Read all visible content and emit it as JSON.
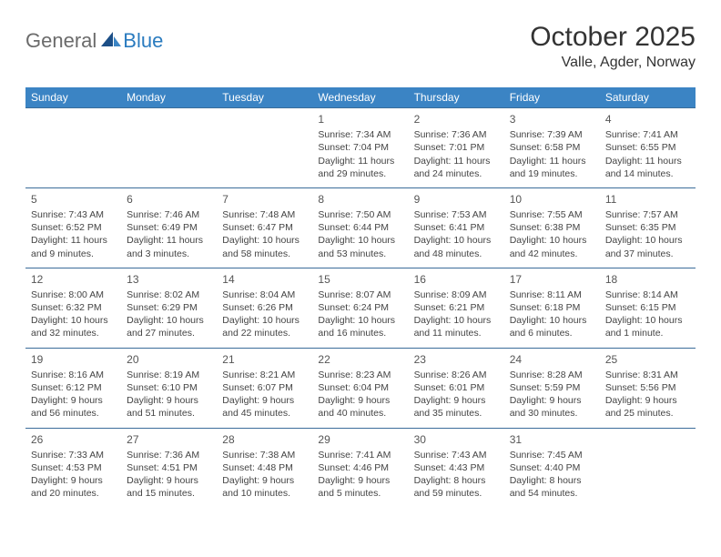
{
  "logo": {
    "part1": "General",
    "part2": "Blue"
  },
  "title": "October 2025",
  "location": "Valle, Agder, Norway",
  "columns": [
    "Sunday",
    "Monday",
    "Tuesday",
    "Wednesday",
    "Thursday",
    "Friday",
    "Saturday"
  ],
  "colors": {
    "header_bg": "#3b84c4",
    "header_text": "#ffffff",
    "border": "#3b6d9a",
    "logo_gray": "#6b6b6b",
    "logo_blue": "#2a7bbf",
    "text": "#444444"
  },
  "weeks": [
    [
      null,
      null,
      null,
      {
        "n": "1",
        "sr": "7:34 AM",
        "ss": "7:04 PM",
        "dl": "11 hours and 29 minutes."
      },
      {
        "n": "2",
        "sr": "7:36 AM",
        "ss": "7:01 PM",
        "dl": "11 hours and 24 minutes."
      },
      {
        "n": "3",
        "sr": "7:39 AM",
        "ss": "6:58 PM",
        "dl": "11 hours and 19 minutes."
      },
      {
        "n": "4",
        "sr": "7:41 AM",
        "ss": "6:55 PM",
        "dl": "11 hours and 14 minutes."
      }
    ],
    [
      {
        "n": "5",
        "sr": "7:43 AM",
        "ss": "6:52 PM",
        "dl": "11 hours and 9 minutes."
      },
      {
        "n": "6",
        "sr": "7:46 AM",
        "ss": "6:49 PM",
        "dl": "11 hours and 3 minutes."
      },
      {
        "n": "7",
        "sr": "7:48 AM",
        "ss": "6:47 PM",
        "dl": "10 hours and 58 minutes."
      },
      {
        "n": "8",
        "sr": "7:50 AM",
        "ss": "6:44 PM",
        "dl": "10 hours and 53 minutes."
      },
      {
        "n": "9",
        "sr": "7:53 AM",
        "ss": "6:41 PM",
        "dl": "10 hours and 48 minutes."
      },
      {
        "n": "10",
        "sr": "7:55 AM",
        "ss": "6:38 PM",
        "dl": "10 hours and 42 minutes."
      },
      {
        "n": "11",
        "sr": "7:57 AM",
        "ss": "6:35 PM",
        "dl": "10 hours and 37 minutes."
      }
    ],
    [
      {
        "n": "12",
        "sr": "8:00 AM",
        "ss": "6:32 PM",
        "dl": "10 hours and 32 minutes."
      },
      {
        "n": "13",
        "sr": "8:02 AM",
        "ss": "6:29 PM",
        "dl": "10 hours and 27 minutes."
      },
      {
        "n": "14",
        "sr": "8:04 AM",
        "ss": "6:26 PM",
        "dl": "10 hours and 22 minutes."
      },
      {
        "n": "15",
        "sr": "8:07 AM",
        "ss": "6:24 PM",
        "dl": "10 hours and 16 minutes."
      },
      {
        "n": "16",
        "sr": "8:09 AM",
        "ss": "6:21 PM",
        "dl": "10 hours and 11 minutes."
      },
      {
        "n": "17",
        "sr": "8:11 AM",
        "ss": "6:18 PM",
        "dl": "10 hours and 6 minutes."
      },
      {
        "n": "18",
        "sr": "8:14 AM",
        "ss": "6:15 PM",
        "dl": "10 hours and 1 minute."
      }
    ],
    [
      {
        "n": "19",
        "sr": "8:16 AM",
        "ss": "6:12 PM",
        "dl": "9 hours and 56 minutes."
      },
      {
        "n": "20",
        "sr": "8:19 AM",
        "ss": "6:10 PM",
        "dl": "9 hours and 51 minutes."
      },
      {
        "n": "21",
        "sr": "8:21 AM",
        "ss": "6:07 PM",
        "dl": "9 hours and 45 minutes."
      },
      {
        "n": "22",
        "sr": "8:23 AM",
        "ss": "6:04 PM",
        "dl": "9 hours and 40 minutes."
      },
      {
        "n": "23",
        "sr": "8:26 AM",
        "ss": "6:01 PM",
        "dl": "9 hours and 35 minutes."
      },
      {
        "n": "24",
        "sr": "8:28 AM",
        "ss": "5:59 PM",
        "dl": "9 hours and 30 minutes."
      },
      {
        "n": "25",
        "sr": "8:31 AM",
        "ss": "5:56 PM",
        "dl": "9 hours and 25 minutes."
      }
    ],
    [
      {
        "n": "26",
        "sr": "7:33 AM",
        "ss": "4:53 PM",
        "dl": "9 hours and 20 minutes."
      },
      {
        "n": "27",
        "sr": "7:36 AM",
        "ss": "4:51 PM",
        "dl": "9 hours and 15 minutes."
      },
      {
        "n": "28",
        "sr": "7:38 AM",
        "ss": "4:48 PM",
        "dl": "9 hours and 10 minutes."
      },
      {
        "n": "29",
        "sr": "7:41 AM",
        "ss": "4:46 PM",
        "dl": "9 hours and 5 minutes."
      },
      {
        "n": "30",
        "sr": "7:43 AM",
        "ss": "4:43 PM",
        "dl": "8 hours and 59 minutes."
      },
      {
        "n": "31",
        "sr": "7:45 AM",
        "ss": "4:40 PM",
        "dl": "8 hours and 54 minutes."
      },
      null
    ]
  ],
  "labels": {
    "sunrise": "Sunrise:",
    "sunset": "Sunset:",
    "daylight": "Daylight:"
  }
}
